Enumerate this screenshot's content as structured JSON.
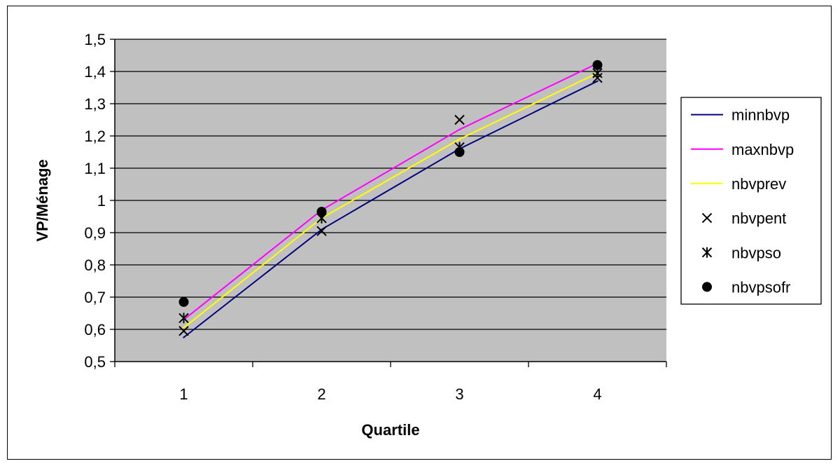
{
  "chart_data": {
    "type": "line",
    "xlabel": "Quartile",
    "ylabel": "VP/Ménage",
    "categories": [
      "1",
      "2",
      "3",
      "4"
    ],
    "ylim": [
      0.5,
      1.5
    ],
    "y_ticks": [
      0.5,
      0.6,
      0.7,
      0.8,
      0.9,
      1.0,
      1.1,
      1.2,
      1.3,
      1.4,
      1.5
    ],
    "y_tick_labels": [
      "0,5",
      "0,6",
      "0,7",
      "0,8",
      "0,9",
      "1",
      "1,1",
      "1,2",
      "1,3",
      "1,4",
      "1,5"
    ],
    "grid": true,
    "plot_background": "#c0c0c0",
    "legend_position": "right",
    "series": [
      {
        "name": "minnbvp",
        "kind": "line",
        "color": "#000080",
        "values": [
          0.575,
          0.91,
          1.16,
          1.37
        ]
      },
      {
        "name": "maxnbvp",
        "kind": "line",
        "color": "#ff00ff",
        "values": [
          0.63,
          0.97,
          1.22,
          1.425
        ]
      },
      {
        "name": "nbvprev",
        "kind": "line",
        "color": "#ffff00",
        "values": [
          0.605,
          0.945,
          1.19,
          1.395
        ]
      },
      {
        "name": "nbvpent",
        "kind": "marker",
        "marker": "x",
        "color": "#000000",
        "values": [
          0.595,
          0.905,
          1.25,
          1.38
        ]
      },
      {
        "name": "nbvpso",
        "kind": "marker",
        "marker": "asterisk",
        "color": "#000000",
        "values": [
          0.635,
          0.945,
          1.165,
          1.395
        ]
      },
      {
        "name": "nbvpsofr",
        "kind": "marker",
        "marker": "dot",
        "color": "#000000",
        "values": [
          0.685,
          0.965,
          1.15,
          1.42
        ]
      }
    ]
  }
}
